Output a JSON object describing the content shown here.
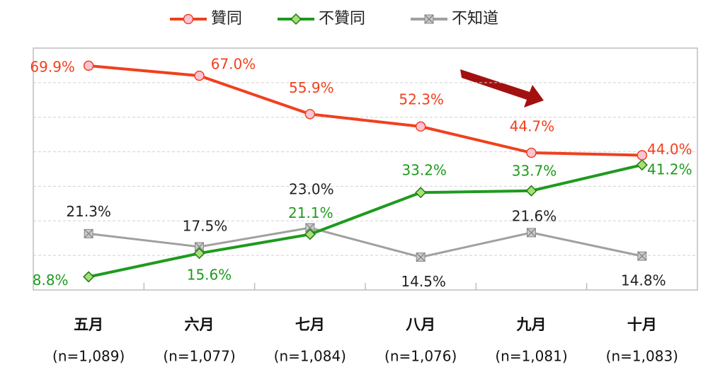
{
  "chart_data": {
    "type": "line",
    "categories": [
      "五月",
      "六月",
      "七月",
      "八月",
      "九月",
      "十月"
    ],
    "sample_sizes": [
      "(n=1,089)",
      "(n=1,077)",
      "(n=1,084)",
      "(n=1,076)",
      "(n=1,081)",
      "(n=1,083)"
    ],
    "series": [
      {
        "name": "贊同",
        "color": "#f0401e",
        "marker": "circle",
        "marker_fill": "#f9c4d4",
        "values": [
          69.9,
          67.0,
          55.9,
          52.3,
          44.7,
          44.0
        ],
        "value_labels": [
          "69.9%",
          "67.0%",
          "55.9%",
          "52.3%",
          "44.7%",
          "44.0%"
        ]
      },
      {
        "name": "不贊同",
        "color": "#1e9a1e",
        "marker": "diamond",
        "marker_fill": "#a8e070",
        "values": [
          8.8,
          15.6,
          21.1,
          33.2,
          33.7,
          41.2
        ],
        "value_labels": [
          "8.8%",
          "15.6%",
          "21.1%",
          "33.2%",
          "33.7%",
          "41.2%"
        ]
      },
      {
        "name": "不知道",
        "color": "#a0a0a0",
        "marker": "square",
        "marker_fill": "#c8c8c8",
        "label_color": "#222222",
        "values": [
          21.3,
          17.5,
          23.0,
          14.5,
          21.6,
          14.8
        ],
        "value_labels": [
          "21.3%",
          "17.5%",
          "23.0%",
          "14.5%",
          "21.6%",
          "14.8%"
        ]
      }
    ],
    "ylim": [
      5,
      75
    ],
    "yticks": [
      15,
      25,
      35,
      45,
      55,
      65
    ],
    "grid": true
  }
}
